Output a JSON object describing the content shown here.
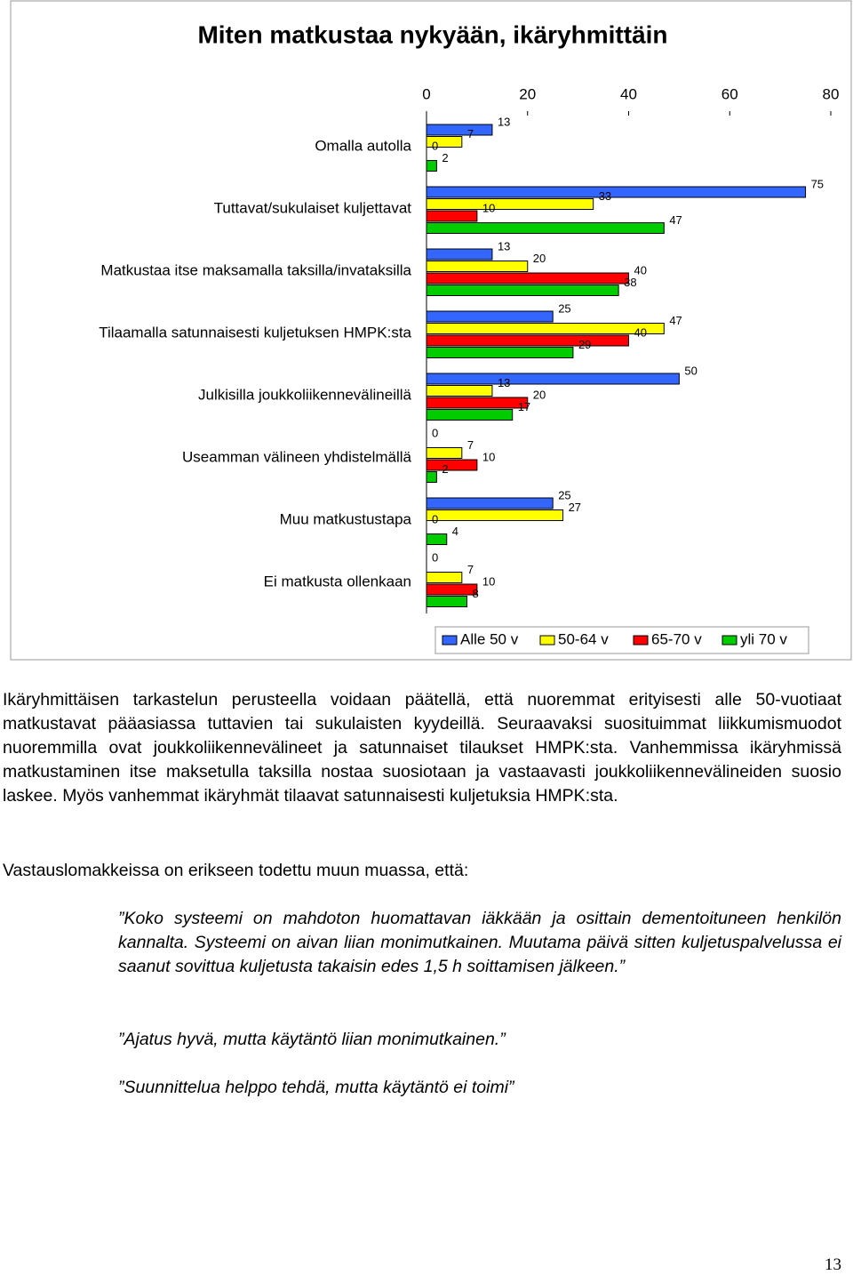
{
  "chart_data": {
    "type": "bar",
    "orientation": "horizontal",
    "title": "Miten matkustaa nykyään, ikäryhmittäin",
    "categories": [
      "Omalla autolla",
      "Tuttavat/sukulaiset kuljettavat",
      "Matkustaa itse maksamalla taksilla/invataksilla",
      "Tilaamalla satunnaisesti kuljetuksen HMPK:sta",
      "Julkisilla joukkoliikennevälineillä",
      "Useamman välineen yhdistelmällä",
      "Muu matkustustapa",
      "Ei matkusta ollenkaan"
    ],
    "series": [
      {
        "name": "Alle 50 v",
        "color": "#3366ff",
        "values": [
          13,
          75,
          13,
          25,
          50,
          0,
          25,
          0
        ]
      },
      {
        "name": "50-64 v",
        "color": "#ffff00",
        "values": [
          7,
          33,
          20,
          47,
          13,
          7,
          27,
          7
        ]
      },
      {
        "name": "65-70 v",
        "color": "#ff0000",
        "values": [
          0,
          10,
          40,
          40,
          20,
          10,
          0,
          10
        ]
      },
      {
        "name": "yli 70 v",
        "color": "#00cc00",
        "values": [
          2,
          47,
          38,
          29,
          17,
          2,
          4,
          8
        ]
      }
    ],
    "xlim": [
      0,
      80
    ],
    "xticks": [
      0,
      20,
      40,
      60,
      80
    ],
    "legend": "bottom",
    "grid": false
  },
  "paragraphs": [
    "Ikäryhmittäisen tarkastelun perusteella voidaan päätellä, että nuoremmat erityisesti alle 50-vuotiaat matkustavat pääasiassa tuttavien tai sukulaisten kyydeillä. Seuraavaksi suosituimmat liikkumismuodot nuoremmilla ovat joukkoliikennevälineet ja satunnaiset tilaukset HMPK:sta. Vanhemmissa ikäryhmissä matkustaminen itse maksetulla taksilla nostaa suosiotaan ja vastaavasti joukkoliikennevälineiden suosio laskee. Myös vanhemmat ikäryhmät tilaavat satunnaisesti kuljetuksia HMPK:sta.",
    "Vastauslomakkeissa on erikseen todettu muun muassa, että:"
  ],
  "quotes": [
    "”Koko systeemi on mahdoton huomattavan iäkkään ja osittain dementoituneen henkilön kannalta. Systeemi on aivan liian monimutkainen. Muutama päivä sitten kuljetuspalvelussa ei saanut sovittua kuljetusta takaisin edes 1,5 h soittamisen jälkeen.”",
    "”Ajatus hyvä, mutta käytäntö liian monimutkainen.”",
    "”Suunnittelua helppo tehdä, mutta käytäntö ei toimi”"
  ],
  "page_number": "13"
}
